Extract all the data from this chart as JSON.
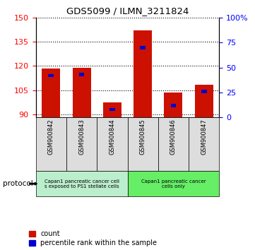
{
  "title": "GDS5099 / ILMN_3211824",
  "samples": [
    "GSM900842",
    "GSM900843",
    "GSM900844",
    "GSM900845",
    "GSM900846",
    "GSM900847"
  ],
  "count_values": [
    118.5,
    119.0,
    97.5,
    142.0,
    103.5,
    108.5
  ],
  "percentile_values": [
    42,
    43,
    8,
    70,
    12,
    26
  ],
  "ylim_left": [
    88,
    150
  ],
  "yticks_left": [
    90,
    105,
    120,
    135,
    150
  ],
  "ylim_right": [
    0,
    100
  ],
  "yticks_right": [
    0,
    25,
    50,
    75,
    100
  ],
  "bar_color": "#cc1100",
  "percentile_color": "#0000cc",
  "bar_bottom": 88,
  "group1_label": "Capan1 pancreatic cancer cell\ns exposed to PS1 stellate cells",
  "group2_label": "Capan1 pancreatic cancer\ncells only",
  "group1_indices": [
    0,
    1,
    2
  ],
  "group2_indices": [
    3,
    4,
    5
  ],
  "group1_color": "#bbeecc",
  "group2_color": "#66ee66",
  "protocol_label": "protocol",
  "legend_count": "count",
  "legend_percentile": "percentile rank within the sample",
  "sample_box_color": "#dddddd"
}
